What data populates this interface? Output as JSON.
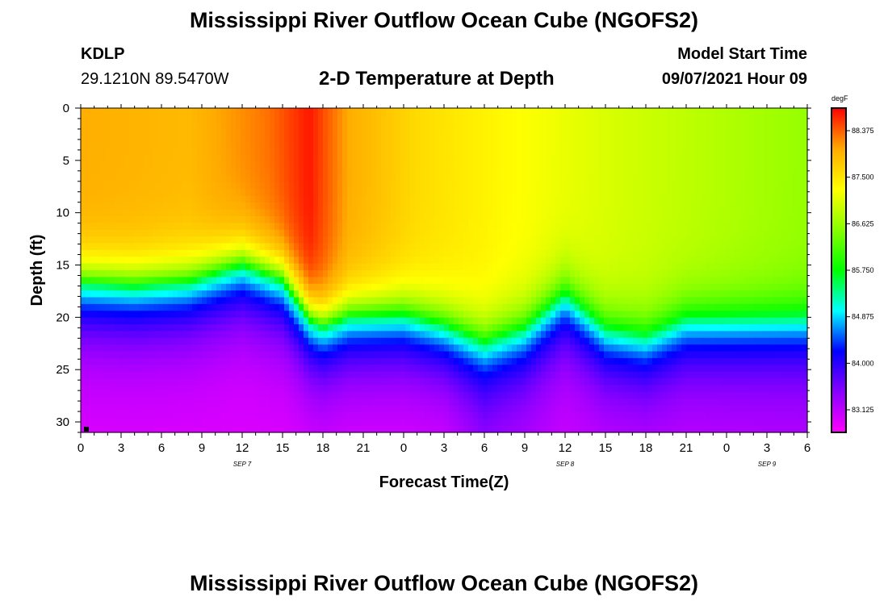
{
  "header": {
    "title": "Mississippi River Outflow Ocean Cube (NGOFS2)",
    "station_id": "KDLP",
    "station_coords": "29.1210N  89.5470W",
    "plot_title": "2-D Temperature at Depth",
    "model_start_label": "Model Start Time",
    "model_start_value": "09/07/2021 Hour 09"
  },
  "footer": {
    "title": "Mississippi River Outflow Ocean Cube (NGOFS2)"
  },
  "chart_data": {
    "type": "heatmap",
    "xlabel": "Forecast Time(Z)",
    "ylabel": "Depth (ft)",
    "x_range_hours": [
      0,
      54
    ],
    "y_range_ft": [
      0,
      31
    ],
    "y_inverted": true,
    "x_tick_labels": [
      "0",
      "3",
      "6",
      "9",
      "12",
      "15",
      "18",
      "21",
      "0",
      "3",
      "6",
      "9",
      "12",
      "15",
      "18",
      "21",
      "0",
      "3",
      "6"
    ],
    "y_tick_values": [
      0,
      5,
      10,
      15,
      20,
      25,
      30
    ],
    "date_labels": [
      {
        "text": "SEP 7",
        "hour": 12
      },
      {
        "text": "SEP 8",
        "hour": 36
      },
      {
        "text": "SEP 9",
        "hour": 51
      }
    ],
    "colorbar": {
      "unit": "degF",
      "range": [
        82.7,
        88.8
      ],
      "tick_values": [
        88.375,
        87.5,
        86.625,
        85.75,
        84.875,
        84.0,
        83.125
      ],
      "tick_labels": [
        "88.375",
        "87.500",
        "86.625",
        "85.750",
        "84.875",
        "84.000",
        "83.125"
      ],
      "colors": [
        "#ff00ff",
        "#8800ff",
        "#0000ff",
        "#00ffff",
        "#00ff00",
        "#88ff00",
        "#ffff00",
        "#ffaa00",
        "#ff0000"
      ]
    },
    "thermocline_depth_ft": [
      {
        "hour": 0,
        "depth": 17.0
      },
      {
        "hour": 4,
        "depth": 17.3
      },
      {
        "hour": 8,
        "depth": 16.9
      },
      {
        "hour": 12,
        "depth": 15.3
      },
      {
        "hour": 15,
        "depth": 16.8
      },
      {
        "hour": 17,
        "depth": 20.5
      },
      {
        "hour": 18,
        "depth": 21.2
      },
      {
        "hour": 20,
        "depth": 20.2
      },
      {
        "hour": 24,
        "depth": 20.0
      },
      {
        "hour": 27,
        "depth": 21.0
      },
      {
        "hour": 30,
        "depth": 22.7
      },
      {
        "hour": 33,
        "depth": 21.3
      },
      {
        "hour": 36,
        "depth": 18.0
      },
      {
        "hour": 39,
        "depth": 21.3
      },
      {
        "hour": 42,
        "depth": 22.0
      },
      {
        "hour": 45,
        "depth": 20.3
      },
      {
        "hour": 54,
        "depth": 20.1
      }
    ],
    "surface_temperature_degF": [
      {
        "hour": 0,
        "value": 88.0
      },
      {
        "hour": 8,
        "value": 87.9
      },
      {
        "hour": 14,
        "value": 88.3
      },
      {
        "hour": 17,
        "value": 88.7
      },
      {
        "hour": 20,
        "value": 88.0
      },
      {
        "hour": 25,
        "value": 87.6
      },
      {
        "hour": 32,
        "value": 87.3
      },
      {
        "hour": 40,
        "value": 87.0
      },
      {
        "hour": 54,
        "value": 86.6
      }
    ],
    "bottom_temperature_degF": [
      {
        "hour": 0,
        "value": 82.9
      },
      {
        "hour": 27,
        "value": 82.9
      },
      {
        "hour": 30,
        "value": 83.2
      },
      {
        "hour": 36,
        "value": 83.0
      },
      {
        "hour": 54,
        "value": 83.1
      }
    ]
  }
}
